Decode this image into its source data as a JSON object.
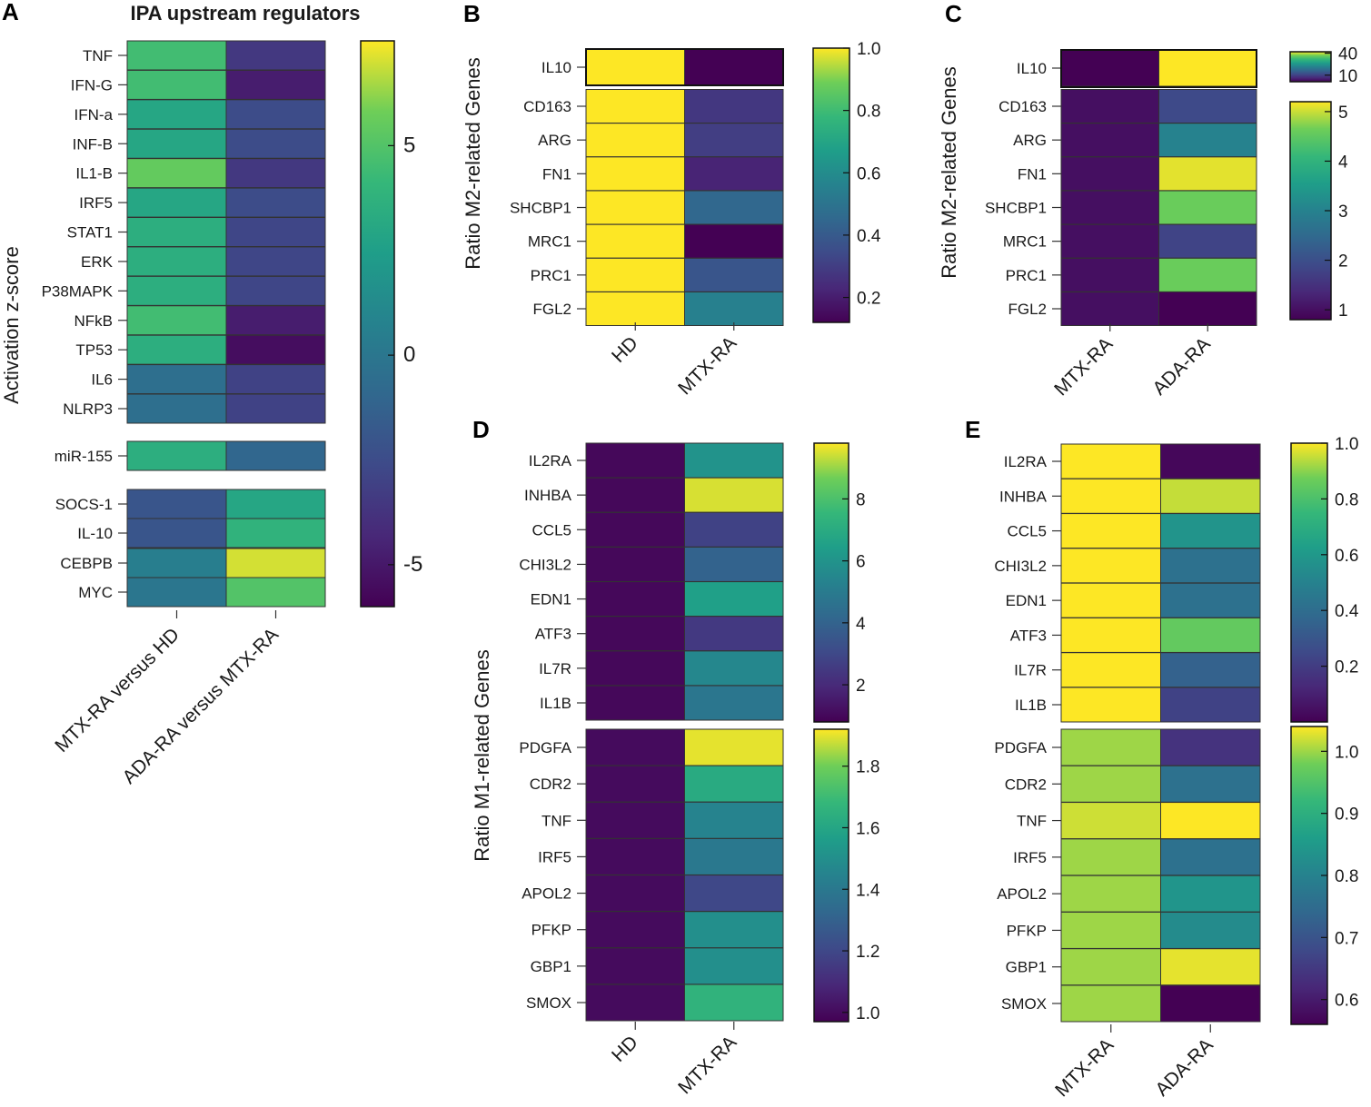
{
  "chart_data": [
    {
      "panel": "A",
      "type": "heatmap",
      "title": "IPA upstream regulators",
      "ylabel": "Activation z-score",
      "columns": [
        "MTX-RA versus HD",
        "ADA-RA versus MTX-RA"
      ],
      "rows": [
        "TNF",
        "IFN-G",
        "IFN-a",
        "INF-B",
        "IL1-B",
        "IRF5",
        "STAT1",
        "ERK",
        "P38MAPK",
        "NFkB",
        "TP53",
        "IL6",
        "NLRP3",
        "miR-155",
        "SOCS-1",
        "IL-10",
        "CEBPB",
        "MYC"
      ],
      "values": [
        [
          4.5,
          -3.5
        ],
        [
          4.5,
          -4.8
        ],
        [
          3.0,
          -2.5
        ],
        [
          3.0,
          -2.5
        ],
        [
          5.5,
          -3.5
        ],
        [
          3.0,
          -2.5
        ],
        [
          3.5,
          -2.8
        ],
        [
          3.5,
          -2.8
        ],
        [
          3.5,
          -2.8
        ],
        [
          4.5,
          -4.8
        ],
        [
          3.5,
          -5.5
        ],
        [
          -0.5,
          -3.0
        ],
        [
          -0.5,
          -3.0
        ],
        [
          3.5,
          -1.0
        ],
        [
          -2.0,
          3.0
        ],
        [
          -2.0,
          3.8
        ],
        [
          0.5,
          7.0
        ],
        [
          0.0,
          5.0
        ]
      ],
      "colorbar": {
        "min": -6,
        "max": 7.5,
        "ticks": [
          5,
          0,
          -5
        ]
      }
    },
    {
      "panel": "B",
      "type": "heatmap",
      "ylabel": "Ratio M2-related Genes",
      "columns": [
        "HD",
        "MTX-RA"
      ],
      "blocks": [
        {
          "rows": [
            "IL10"
          ],
          "values": [
            [
              1.0,
              0.12
            ]
          ]
        },
        {
          "rows": [
            "CD163",
            "ARG",
            "FN1",
            "SHCBP1",
            "MRC1",
            "PRC1",
            "FGL2"
          ],
          "values": [
            [
              1.0,
              0.28
            ],
            [
              1.0,
              0.3
            ],
            [
              1.0,
              0.22
            ],
            [
              1.0,
              0.45
            ],
            [
              1.0,
              0.12
            ],
            [
              1.0,
              0.38
            ],
            [
              1.0,
              0.55
            ]
          ]
        }
      ],
      "colorbar": {
        "min": 0.12,
        "max": 1.0,
        "ticks": [
          1.0,
          0.8,
          0.6,
          0.4,
          0.2
        ]
      }
    },
    {
      "panel": "C",
      "type": "heatmap",
      "ylabel": "Ratio M2-related Genes",
      "columns": [
        "MTX-RA",
        "ADA-RA"
      ],
      "blocks": [
        {
          "rows": [
            "IL10"
          ],
          "values": [
            [
              1.0,
              42.0
            ]
          ],
          "colorbar": {
            "min": 1,
            "max": 42,
            "ticks": [
              40,
              10
            ]
          }
        },
        {
          "rows": [
            "CD163",
            "ARG",
            "FN1",
            "SHCBP1",
            "MRC1",
            "PRC1",
            "FGL2"
          ],
          "values": [
            [
              1.0,
              1.9
            ],
            [
              1.0,
              3.0
            ],
            [
              1.0,
              5.1
            ],
            [
              1.0,
              4.6
            ],
            [
              1.0,
              1.8
            ],
            [
              1.0,
              4.6
            ],
            [
              1.0,
              0.8
            ]
          ],
          "colorbar": {
            "min": 0.8,
            "max": 5.2,
            "ticks": [
              5,
              4,
              3,
              2,
              1
            ]
          }
        }
      ]
    },
    {
      "panel": "D",
      "type": "heatmap",
      "ylabel": "Ratio M1-related Genes",
      "columns": [
        "HD",
        "MTX-RA"
      ],
      "blocks": [
        {
          "rows": [
            "IL2RA",
            "INHBA",
            "CCL5",
            "CHI3L2",
            "EDN1",
            "ATF3",
            "IL7R",
            "IL1B"
          ],
          "values": [
            [
              1.0,
              6.0
            ],
            [
              1.0,
              9.5
            ],
            [
              1.0,
              2.8
            ],
            [
              1.0,
              4.0
            ],
            [
              1.0,
              6.5
            ],
            [
              1.0,
              2.5
            ],
            [
              1.0,
              5.5
            ],
            [
              1.0,
              4.8
            ]
          ],
          "colorbar": {
            "min": 0.8,
            "max": 9.8,
            "ticks": [
              8,
              6,
              4,
              2
            ]
          }
        },
        {
          "rows": [
            "PDGFA",
            "CDR2",
            "TNF",
            "IRF5",
            "APOL2",
            "PFKP",
            "GBP1",
            "SMOX"
          ],
          "values": [
            [
              1.0,
              1.9
            ],
            [
              1.0,
              1.62
            ],
            [
              1.0,
              1.45
            ],
            [
              1.0,
              1.4
            ],
            [
              1.0,
              1.2
            ],
            [
              1.0,
              1.5
            ],
            [
              1.0,
              1.5
            ],
            [
              1.0,
              1.66
            ]
          ],
          "colorbar": {
            "min": 0.97,
            "max": 1.92,
            "ticks": [
              1.8,
              1.6,
              1.4,
              1.2,
              1.0
            ]
          }
        }
      ]
    },
    {
      "panel": "E",
      "type": "heatmap",
      "columns": [
        "MTX-RA",
        "ADA-RA"
      ],
      "blocks": [
        {
          "rows": [
            "IL2RA",
            "INHBA",
            "CCL5",
            "CHI3L2",
            "EDN1",
            "ATF3",
            "IL7R",
            "IL1B"
          ],
          "values": [
            [
              1.0,
              0.02
            ],
            [
              1.0,
              0.95
            ],
            [
              1.0,
              0.58
            ],
            [
              1.0,
              0.42
            ],
            [
              1.0,
              0.42
            ],
            [
              1.0,
              0.85
            ],
            [
              1.0,
              0.35
            ],
            [
              1.0,
              0.22
            ]
          ],
          "colorbar": {
            "min": 0.0,
            "max": 1.0,
            "ticks": [
              1.0,
              0.8,
              0.6,
              0.4,
              0.2
            ]
          }
        },
        {
          "rows": [
            "PDGFA",
            "CDR2",
            "TNF",
            "IRF5",
            "APOL2",
            "PFKP",
            "GBP1",
            "SMOX"
          ],
          "values": [
            [
              1.0,
              0.64
            ],
            [
              1.0,
              0.76
            ],
            [
              1.02,
              1.04
            ],
            [
              1.0,
              0.76
            ],
            [
              1.0,
              0.84
            ],
            [
              1.0,
              0.82
            ],
            [
              1.0,
              1.03
            ],
            [
              1.0,
              0.56
            ]
          ],
          "colorbar": {
            "min": 0.56,
            "max": 1.04,
            "ticks": [
              1.0,
              0.9,
              0.8,
              0.7,
              0.6
            ]
          }
        }
      ]
    }
  ]
}
